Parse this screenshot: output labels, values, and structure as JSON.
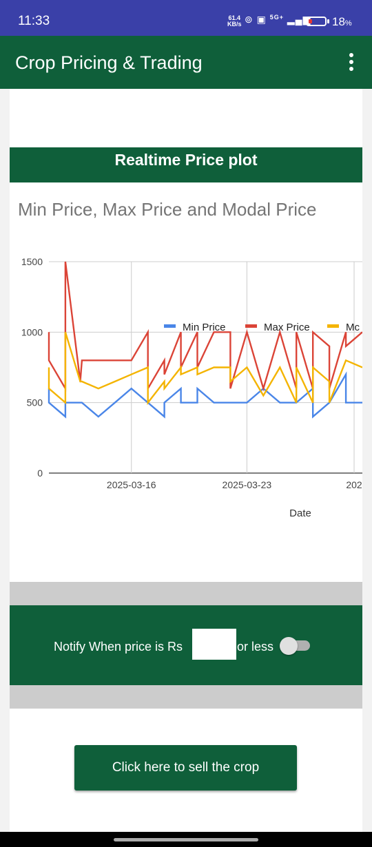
{
  "status_bar": {
    "time": "11:33",
    "net_speed_value": "61.4",
    "net_speed_unit": "KB/s",
    "network": "5G+",
    "battery": "18",
    "battery_unit": "%"
  },
  "app_bar": {
    "title": "Crop Pricing & Trading",
    "menu_icon": "more-vert-icon"
  },
  "plot_section": {
    "header": "Realtime Price plot"
  },
  "chart_data": {
    "type": "line",
    "title": "Min Price, Max Price and Modal Price",
    "xlabel": "Date",
    "ylabel": "",
    "ylim": [
      0,
      1500
    ],
    "yticks": [
      "0",
      "500",
      "1000",
      "1500"
    ],
    "xticks": [
      "2025-03-16",
      "2025-03-23",
      "202"
    ],
    "xtick_positions": [
      8,
      15,
      21.5
    ],
    "xlim": [
      3,
      22
    ],
    "grid": true,
    "legend_position": "top",
    "x": [
      3,
      3,
      4,
      4,
      4.9,
      5,
      6,
      7,
      8,
      9,
      9,
      10,
      10,
      11,
      11,
      12,
      12,
      13,
      14,
      14,
      15,
      16,
      17,
      18,
      18,
      19,
      19,
      20,
      20,
      21,
      21,
      22
    ],
    "series": [
      {
        "name": "Min Price",
        "color": "#4a86e8",
        "values": [
          600,
          500,
          400,
          500,
          500,
          500,
          400,
          500,
          600,
          500,
          500,
          400,
          500,
          600,
          500,
          500,
          600,
          500,
          500,
          500,
          500,
          600,
          500,
          500,
          500,
          600,
          400,
          500,
          500,
          700,
          500,
          500
        ]
      },
      {
        "name": "Max Price",
        "color": "#db4437",
        "values": [
          1000,
          800,
          600,
          1500,
          650,
          800,
          800,
          800,
          800,
          1000,
          600,
          800,
          700,
          1000,
          750,
          1000,
          750,
          1000,
          1000,
          600,
          1000,
          600,
          1000,
          600,
          1000,
          600,
          1000,
          900,
          600,
          1000,
          900,
          1000
        ]
      },
      {
        "name": "Modal Price",
        "color": "#f4b400",
        "values": [
          750,
          600,
          500,
          1000,
          650,
          650,
          600,
          650,
          700,
          750,
          500,
          650,
          600,
          750,
          700,
          750,
          700,
          750,
          750,
          650,
          750,
          550,
          750,
          500,
          750,
          500,
          750,
          650,
          500,
          800,
          800,
          750
        ]
      }
    ],
    "legend_labels": [
      "Min Price",
      "Max Price",
      "Mc"
    ]
  },
  "notify": {
    "label": "Notify When price is Rs",
    "price_value": "",
    "suffix": "or less",
    "toggle_on": false
  },
  "sell_button": {
    "label": "Click here to sell the crop"
  }
}
